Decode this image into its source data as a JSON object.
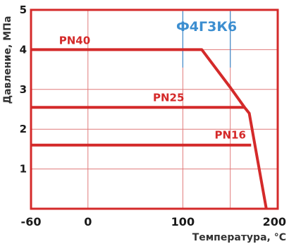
{
  "chart_data": {
    "type": "line",
    "title": "",
    "xlabel": "Температура, °C",
    "ylabel": "Давление, МПа",
    "xlim": [
      -60,
      200
    ],
    "ylim": [
      0,
      5
    ],
    "x_ticks": [
      -60,
      0,
      100,
      150,
      200
    ],
    "x_tick_labels": [
      "-60",
      "0",
      "100",
      "",
      "200"
    ],
    "y_ticks": [
      1,
      2,
      3,
      4,
      5
    ],
    "y_tick_labels": [
      "1",
      "2",
      "3",
      "4",
      "5"
    ],
    "grid": true,
    "series": [
      {
        "name": "PN40",
        "points": [
          [
            -60,
            4.0
          ],
          [
            120,
            4.0
          ],
          [
            150,
            3.05
          ],
          [
            165,
            2.55
          ],
          [
            170,
            2.4
          ],
          [
            188,
            0
          ]
        ]
      },
      {
        "name": "PN25",
        "points": [
          [
            -60,
            2.55
          ],
          [
            165,
            2.55
          ]
        ]
      },
      {
        "name": "PN16",
        "points": [
          [
            -60,
            1.6
          ],
          [
            172,
            1.6
          ]
        ]
      }
    ],
    "annotations": [
      {
        "text": "Ф4Г3К6",
        "color": "#3c8ed0"
      }
    ]
  },
  "colors": {
    "series": "#d42a2a",
    "frame": "#d42a2a",
    "grid": "#e07a7a",
    "annotation": "#3c8ed0"
  }
}
